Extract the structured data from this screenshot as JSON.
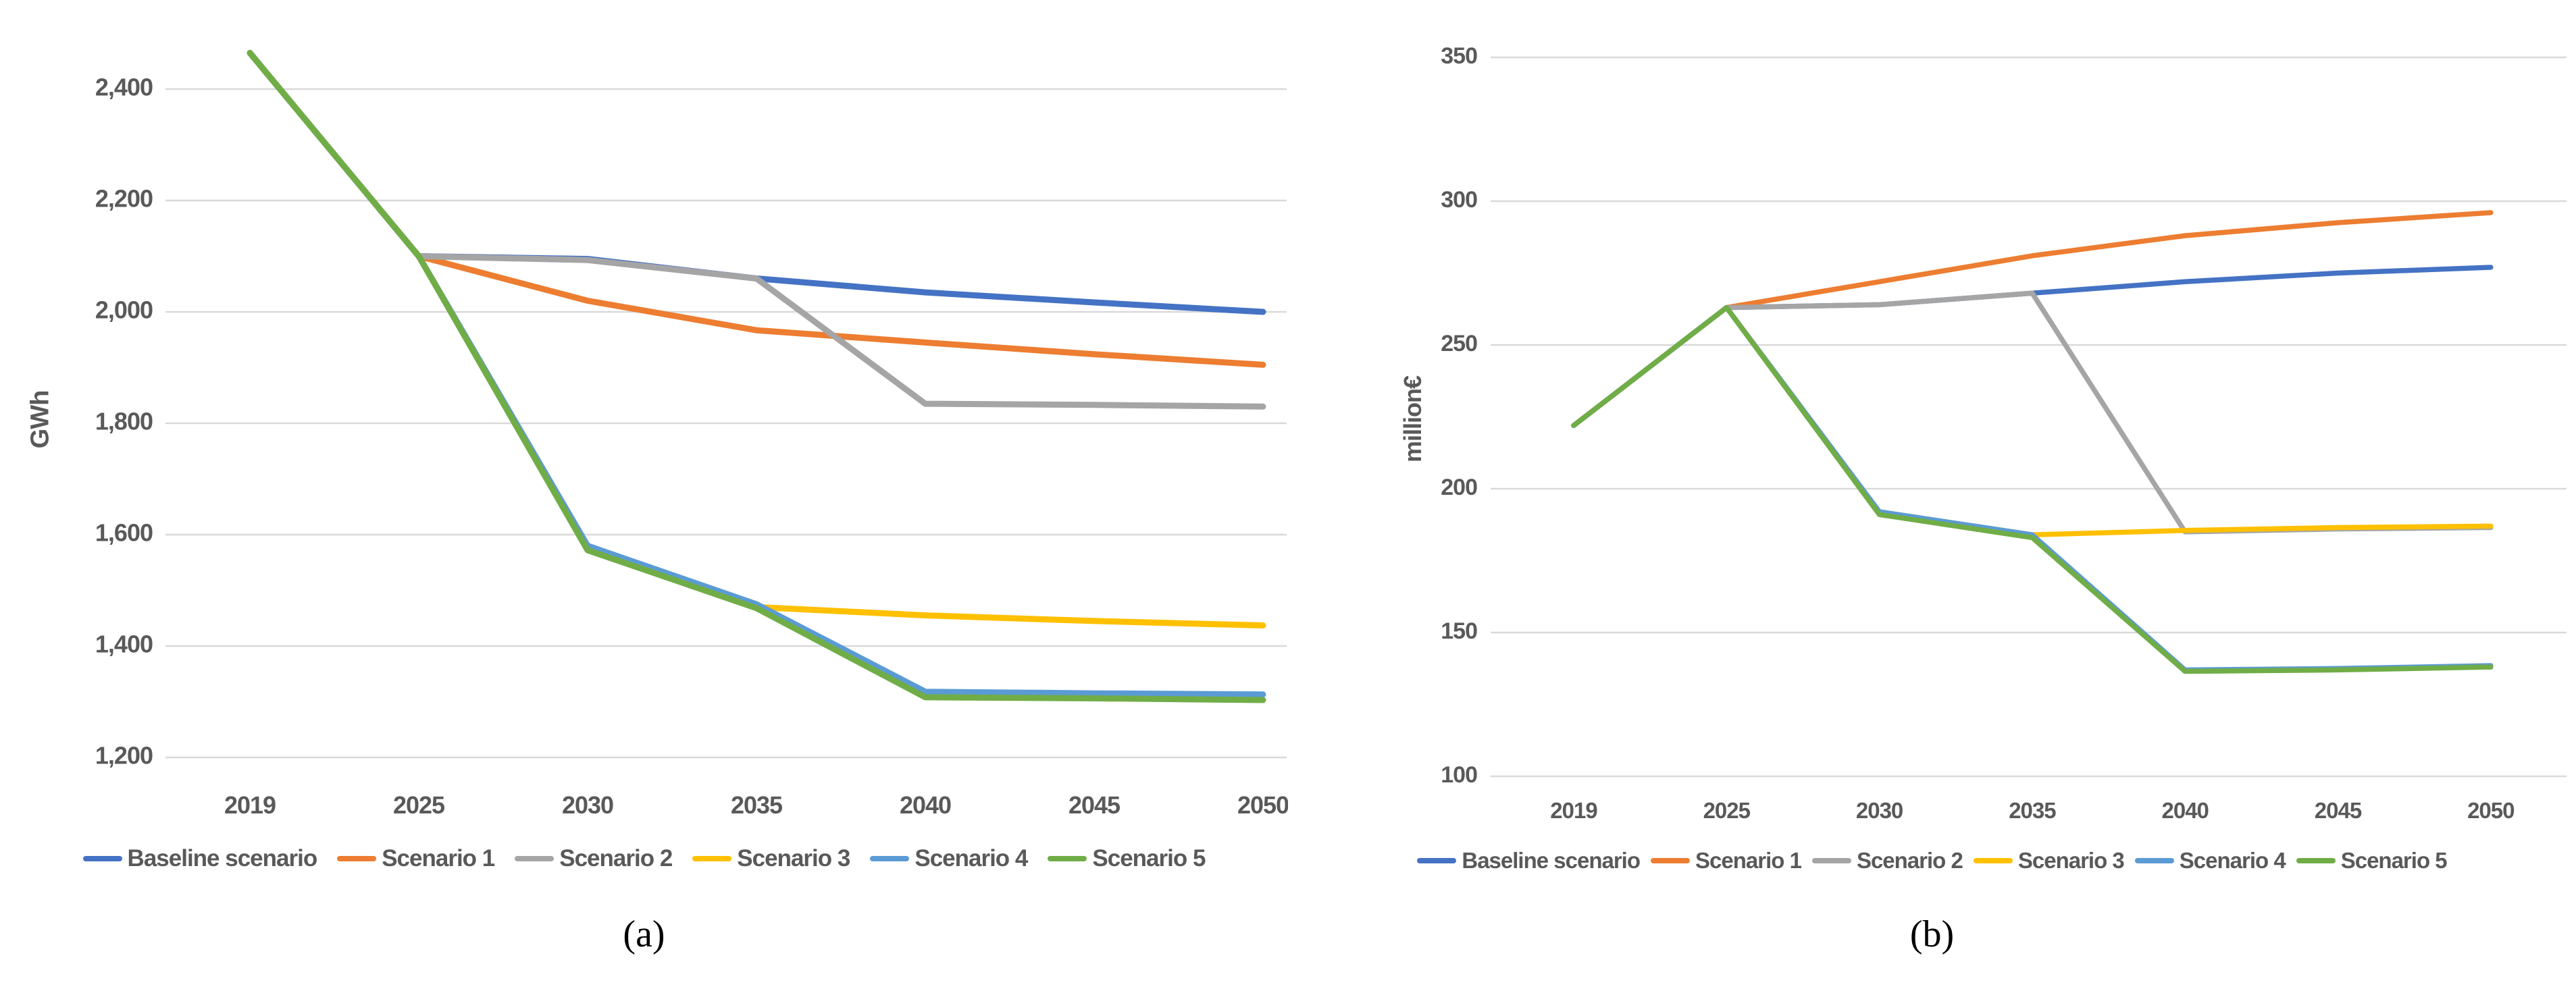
{
  "chart_data": [
    {
      "id": "a",
      "type": "line",
      "title": "",
      "caption": "(a)",
      "ylabel": "GWh",
      "xlabel": "",
      "categories": [
        "2019",
        "2025",
        "2030",
        "2035",
        "2040",
        "2045",
        "2050"
      ],
      "y_tick_labels": [
        "2,400",
        "2,200",
        "2,000",
        "1,800",
        "1,600",
        "1,400",
        "1,200"
      ],
      "ylim": [
        1200,
        2400
      ],
      "grid": true,
      "legend_position": "bottom",
      "gridline_color": "#D9D9D9",
      "series": [
        {
          "name": "Baseline scenario",
          "color": "#4472C4",
          "values": [
            2465,
            2100,
            2095,
            2060,
            2035,
            2017,
            2000
          ]
        },
        {
          "name": "Scenario 1",
          "color": "#ED7D31",
          "values": [
            2465,
            2100,
            2020,
            1967,
            1945,
            1924,
            1905
          ]
        },
        {
          "name": "Scenario 2",
          "color": "#A5A5A5",
          "values": [
            2465,
            2100,
            2093,
            2060,
            1835,
            1833,
            1830
          ]
        },
        {
          "name": "Scenario 3",
          "color": "#FFC000",
          "values": [
            2465,
            2100,
            1580,
            1470,
            1455,
            1445,
            1437
          ]
        },
        {
          "name": "Scenario 4",
          "color": "#5B9BD5",
          "values": [
            2465,
            2100,
            1580,
            1475,
            1318,
            1315,
            1313
          ]
        },
        {
          "name": "Scenario 5",
          "color": "#70AD47",
          "values": [
            2465,
            2100,
            1572,
            1468,
            1308,
            1306,
            1303
          ]
        }
      ]
    },
    {
      "id": "b",
      "type": "line",
      "title": "",
      "caption": "(b)",
      "ylabel": "million€",
      "xlabel": "",
      "categories": [
        "2019",
        "2025",
        "2030",
        "2035",
        "2040",
        "2045",
        "2050"
      ],
      "y_tick_labels": [
        "350",
        "300",
        "250",
        "200",
        "150",
        "100"
      ],
      "ylim": [
        100,
        350
      ],
      "grid": true,
      "legend_position": "bottom",
      "gridline_color": "#D9D9D9",
      "series": [
        {
          "name": "Baseline scenario",
          "color": "#4472C4",
          "values": [
            222,
            263,
            264,
            268,
            272,
            275,
            277
          ]
        },
        {
          "name": "Scenario 1",
          "color": "#ED7D31",
          "values": [
            222,
            263,
            272,
            281,
            288,
            292.5,
            296
          ]
        },
        {
          "name": "Scenario 2",
          "color": "#A5A5A5",
          "values": [
            222,
            263,
            264,
            268,
            185,
            186,
            186.5
          ]
        },
        {
          "name": "Scenario 3",
          "color": "#FFC000",
          "values": [
            222,
            263,
            192,
            184,
            185.5,
            186.5,
            187
          ]
        },
        {
          "name": "Scenario 4",
          "color": "#5B9BD5",
          "values": [
            222,
            263,
            192,
            184,
            137,
            137.5,
            138.5
          ]
        },
        {
          "name": "Scenario 5",
          "color": "#70AD47",
          "values": [
            222,
            263,
            191,
            183,
            136.5,
            137,
            138
          ]
        }
      ]
    }
  ]
}
